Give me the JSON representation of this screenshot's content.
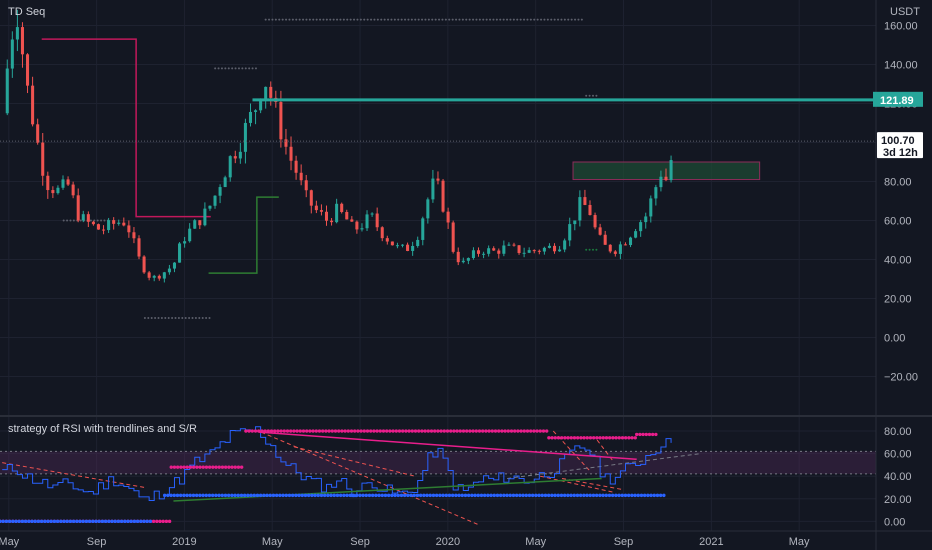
{
  "colors": {
    "background": "#131722",
    "grid": "#1e2230",
    "up": "#26a69a",
    "down": "#ef5350",
    "resistance": "#26a69a",
    "zone_fill": "#1e4d35",
    "zone_border": "#8e2c5a",
    "trail_red": "#c2185b",
    "trail_green": "#1b5e20",
    "rsi_line": "#2962ff",
    "rsi_pink": "#e91e8c",
    "rsi_blue_dots": "#2962ff",
    "rsi_green_line": "#2e7d32"
  },
  "header": {
    "currency": "USDT"
  },
  "chart_data": [
    {
      "type": "candlestick",
      "legend": "TD Seq",
      "ylim": [
        -30,
        170
      ],
      "y_ticks": [
        "160.00",
        "140.00",
        "120.00",
        "100.00",
        "80.00",
        "60.00",
        "40.00",
        "20.00",
        "0.00",
        "−20.00"
      ],
      "y_tick_values": [
        160,
        140,
        120,
        100,
        80,
        60,
        40,
        20,
        0,
        -20
      ],
      "x_ticks": [
        "May",
        "Sep",
        "2019",
        "May",
        "Sep",
        "2020",
        "May",
        "Sep",
        "2021",
        "May"
      ],
      "x_tick_months": [
        0,
        4,
        8,
        12,
        16,
        20,
        24,
        28,
        32,
        36
      ],
      "x_range_months": [
        -0.4,
        39.5
      ],
      "resistance_line": 121.89,
      "last_price": "100.70",
      "countdown": "3d 12h",
      "zone": {
        "from_month": 25.7,
        "to_month": 34.2,
        "low": 81,
        "high": 90
      },
      "red_trail": [
        [
          1.5,
          153
        ],
        [
          5.8,
          153
        ],
        [
          5.8,
          62
        ],
        [
          9.2,
          62
        ]
      ],
      "green_trail": [
        [
          9.1,
          33
        ],
        [
          11.3,
          33
        ],
        [
          11.3,
          72
        ],
        [
          12.3,
          72
        ]
      ],
      "price_path": [
        [
          -0.3,
          115
        ],
        [
          0.1,
          155
        ],
        [
          0.4,
          168
        ],
        [
          0.8,
          130
        ],
        [
          1.3,
          100
        ],
        [
          1.7,
          80
        ],
        [
          2.2,
          75
        ],
        [
          2.7,
          78
        ],
        [
          3.2,
          62
        ],
        [
          3.7,
          58
        ],
        [
          4.2,
          55
        ],
        [
          4.7,
          58
        ],
        [
          5.2,
          60
        ],
        [
          5.5,
          55
        ],
        [
          6.0,
          38
        ],
        [
          6.5,
          30
        ],
        [
          7.0,
          33
        ],
        [
          7.5,
          37
        ],
        [
          7.9,
          50
        ],
        [
          8.4,
          57
        ],
        [
          8.9,
          63
        ],
        [
          9.3,
          70
        ],
        [
          9.7,
          82
        ],
        [
          10.1,
          92
        ],
        [
          10.5,
          100
        ],
        [
          10.9,
          110
        ],
        [
          11.3,
          120
        ],
        [
          11.6,
          135
        ],
        [
          11.9,
          125
        ],
        [
          12.3,
          110
        ],
        [
          12.7,
          95
        ],
        [
          13.1,
          85
        ],
        [
          13.5,
          72
        ],
        [
          14.0,
          65
        ],
        [
          14.5,
          60
        ],
        [
          14.9,
          65
        ],
        [
          15.3,
          62
        ],
        [
          15.7,
          55
        ],
        [
          16.1,
          58
        ],
        [
          16.5,
          62
        ],
        [
          16.9,
          55
        ],
        [
          17.3,
          50
        ],
        [
          17.7,
          46
        ],
        [
          18.1,
          45
        ],
        [
          18.6,
          52
        ],
        [
          19.0,
          68
        ],
        [
          19.3,
          78
        ],
        [
          19.6,
          76
        ],
        [
          20.0,
          58
        ],
        [
          20.3,
          42
        ],
        [
          20.7,
          38
        ],
        [
          21.1,
          42
        ],
        [
          21.6,
          45
        ],
        [
          22.1,
          44
        ],
        [
          22.6,
          46
        ],
        [
          23.1,
          45
        ],
        [
          23.6,
          44
        ],
        [
          24.1,
          45
        ],
        [
          24.6,
          46
        ],
        [
          25.1,
          48
        ],
        [
          25.6,
          58
        ],
        [
          26.0,
          68
        ],
        [
          26.4,
          67
        ],
        [
          26.8,
          52
        ],
        [
          27.2,
          46
        ],
        [
          27.6,
          45
        ],
        [
          28.1,
          50
        ],
        [
          28.6,
          58
        ],
        [
          29.0,
          62
        ],
        [
          29.4,
          75
        ],
        [
          29.7,
          85
        ],
        [
          30.0,
          80
        ],
        [
          30.3,
          100
        ]
      ],
      "dot_rows": [
        {
          "y": 163,
          "from": 11.7,
          "to": 26.2,
          "color": "#5c5f6b"
        },
        {
          "y": 138,
          "from": 9.4,
          "to": 11.3,
          "color": "#5c5f6b"
        },
        {
          "y": 60,
          "from": 2.5,
          "to": 4.6,
          "color": "#5c5f6b"
        },
        {
          "y": 10,
          "from": 6.2,
          "to": 9.2,
          "color": "#5c5f6b"
        },
        {
          "y": 124,
          "from": 26.3,
          "to": 26.9,
          "color": "#5c5f6b"
        },
        {
          "y": 45,
          "from": 26.3,
          "to": 26.8,
          "color": "#1b7a3e"
        }
      ]
    },
    {
      "type": "line",
      "legend": "strategy of RSI with trendlines and S/R",
      "ylim": [
        -5,
        88
      ],
      "y_ticks": [
        "80.00",
        "60.00",
        "40.00",
        "20.00",
        "0.00"
      ],
      "y_tick_values": [
        80,
        60,
        40,
        20,
        0
      ],
      "band": [
        42,
        62
      ],
      "rsi_path": [
        [
          -0.3,
          44
        ],
        [
          0.3,
          48
        ],
        [
          0.7,
          40
        ],
        [
          1.3,
          36
        ],
        [
          1.7,
          32
        ],
        [
          2.2,
          30
        ],
        [
          2.7,
          34
        ],
        [
          3.2,
          28
        ],
        [
          3.7,
          25
        ],
        [
          4.2,
          32
        ],
        [
          4.7,
          38
        ],
        [
          5.2,
          32
        ],
        [
          5.7,
          26
        ],
        [
          6.0,
          18
        ],
        [
          6.4,
          20
        ],
        [
          6.9,
          26
        ],
        [
          7.4,
          32
        ],
        [
          7.9,
          40
        ],
        [
          8.4,
          52
        ],
        [
          8.9,
          56
        ],
        [
          9.3,
          62
        ],
        [
          9.7,
          70
        ],
        [
          10.1,
          76
        ],
        [
          10.5,
          78
        ],
        [
          10.9,
          80
        ],
        [
          11.3,
          81
        ],
        [
          11.6,
          74
        ],
        [
          11.9,
          68
        ],
        [
          12.3,
          56
        ],
        [
          12.7,
          48
        ],
        [
          13.1,
          44
        ],
        [
          13.5,
          38
        ],
        [
          14.0,
          33
        ],
        [
          14.5,
          30
        ],
        [
          14.9,
          38
        ],
        [
          15.3,
          32
        ],
        [
          15.7,
          26
        ],
        [
          16.1,
          30
        ],
        [
          16.5,
          36
        ],
        [
          16.9,
          30
        ],
        [
          17.3,
          26
        ],
        [
          17.7,
          24
        ],
        [
          18.1,
          25
        ],
        [
          18.6,
          34
        ],
        [
          19.0,
          52
        ],
        [
          19.3,
          62
        ],
        [
          19.6,
          60
        ],
        [
          20.0,
          44
        ],
        [
          20.3,
          30
        ],
        [
          20.7,
          26
        ],
        [
          21.1,
          32
        ],
        [
          21.6,
          38
        ],
        [
          22.1,
          36
        ],
        [
          22.6,
          40
        ],
        [
          23.1,
          38
        ],
        [
          23.6,
          36
        ],
        [
          24.1,
          40
        ],
        [
          24.6,
          44
        ],
        [
          25.1,
          50
        ],
        [
          25.6,
          60
        ],
        [
          26.0,
          66
        ],
        [
          26.4,
          64
        ],
        [
          26.8,
          48
        ],
        [
          27.2,
          38
        ],
        [
          27.6,
          40
        ],
        [
          28.1,
          46
        ],
        [
          28.6,
          52
        ],
        [
          29.0,
          58
        ],
        [
          29.4,
          64
        ],
        [
          29.7,
          70
        ],
        [
          30.0,
          68
        ],
        [
          30.3,
          78
        ]
      ],
      "pink_resistance": [
        [
          11.4,
          79
        ],
        [
          28.6,
          55
        ]
      ],
      "green_support": [
        [
          7.5,
          18
        ],
        [
          27.0,
          38
        ]
      ],
      "grey_dashed": [
        [
          22.7,
          38
        ],
        [
          31.5,
          60
        ]
      ],
      "red_dashed": [
        [
          [
            11.5,
            79
          ],
          [
            21.4,
            -3
          ]
        ],
        [
          [
            13.0,
            66
          ],
          [
            18.5,
            40
          ]
        ],
        [
          [
            -0.3,
            52
          ],
          [
            6.2,
            30
          ]
        ],
        [
          [
            24.2,
            40
          ],
          [
            27.5,
            26
          ]
        ],
        [
          [
            25.2,
            38
          ],
          [
            28.0,
            28
          ]
        ],
        [
          [
            24.8,
            80
          ],
          [
            26.5,
            44
          ]
        ],
        [
          [
            26.8,
            72
          ],
          [
            27.5,
            54
          ]
        ]
      ],
      "dot_rows": [
        {
          "y": 80,
          "from": 10.8,
          "to": 24.6,
          "color": "#e91e8c"
        },
        {
          "y": 74,
          "from": 24.6,
          "to": 28.6,
          "color": "#e91e8c"
        },
        {
          "y": 77,
          "from": 28.6,
          "to": 29.6,
          "color": "#e91e8c"
        },
        {
          "y": 48,
          "from": 7.4,
          "to": 10.7,
          "color": "#e91e8c"
        },
        {
          "y": 0,
          "from": -0.4,
          "to": 7.4,
          "color": "#e91e8c"
        },
        {
          "y": 0,
          "from": -0.4,
          "to": 6.5,
          "color": "#2962ff"
        },
        {
          "y": 23,
          "from": 7.1,
          "to": 29.9,
          "color": "#2962ff"
        }
      ]
    }
  ]
}
